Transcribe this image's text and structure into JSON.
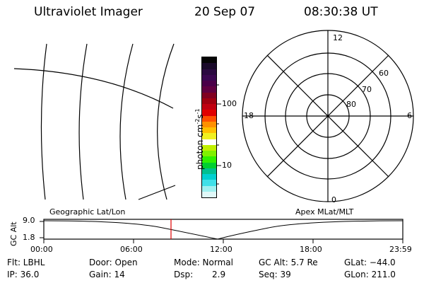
{
  "header": {
    "instrument": "Ultraviolet Imager",
    "date": "20 Sep 07",
    "time": "08:30:38 UT"
  },
  "colorbar": {
    "label": "photon cm",
    "label_sup1": "-2",
    "label_s": "s",
    "label_sup2": "-1",
    "ticks": [
      "100",
      "10"
    ],
    "colors": [
      "#050505",
      "#1a0a2a",
      "#2a0a40",
      "#3a0850",
      "#4a0048",
      "#600040",
      "#800020",
      "#a00010",
      "#c00010",
      "#e00000",
      "#ff5000",
      "#ff9000",
      "#ffc000",
      "#f0f020",
      "#ffffff",
      "#c0f000",
      "#80f000",
      "#30f000",
      "#00d030",
      "#00c090",
      "#00d0d0",
      "#40e0e8",
      "#a0f0f0",
      "#e0f8f8"
    ]
  },
  "polar": {
    "mlt_labels": {
      "top": "12",
      "bottom": "0",
      "left": "18",
      "right": "6"
    },
    "lat_labels": [
      "60",
      "70",
      "80"
    ]
  },
  "timeline": {
    "left_title": "Geographic Lat/Lon",
    "right_title": "Apex  MLat/MLT",
    "ylabel": "GC Alt",
    "y_ticks": [
      "9.0",
      "1.8"
    ],
    "x_ticks": [
      "00:00",
      "06:00",
      "12:00",
      "18:00",
      "23:59"
    ],
    "cursor_color": "#e00000"
  },
  "status": {
    "filter": "Flt: LBHL",
    "ip": "IP: 36.0",
    "door": "Door: Open",
    "gain": "Gain: 14",
    "mode": "Mode: Normal",
    "dsp_label": "Dsp:",
    "dsp_value": "2.9",
    "gc_alt": "GC Alt: 5.7 Re",
    "seq": "Seq: 39",
    "glat": "GLat: −44.0",
    "glon": "GLon: 211.0"
  }
}
